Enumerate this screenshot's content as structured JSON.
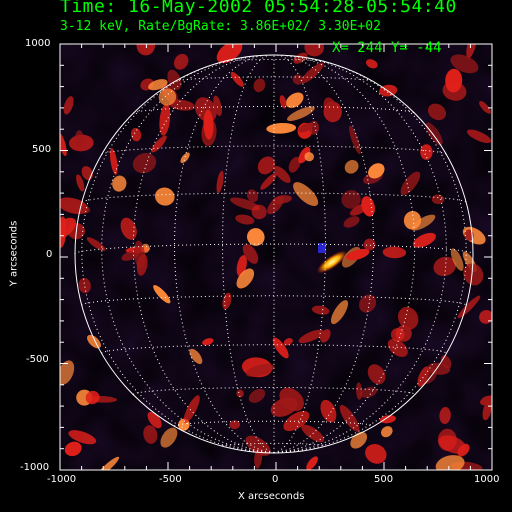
{
  "header": {
    "title": "Time: 16-May-2002 05:54:28-05:54:40",
    "subtitle": "3-12 keV, Rate/BgRate:  3.86E+02/  3.30E+02",
    "cursor_readout": "X=  244 Y=  -44"
  },
  "axes": {
    "xlabel": "X arcseconds",
    "ylabel": "Y arcseconds",
    "xrange": [
      -1000,
      1000
    ],
    "yrange": [
      -1000,
      1000
    ],
    "xticks": [
      "-1000",
      "-500",
      "0",
      "500",
      "1000"
    ],
    "yticks": [
      "1000",
      "500",
      "0",
      "-500",
      "-1000"
    ]
  },
  "colors": {
    "text": "#00ff00",
    "axes": "#ffffff",
    "limb": "#ffffff",
    "grid": "#ffffff"
  }
}
